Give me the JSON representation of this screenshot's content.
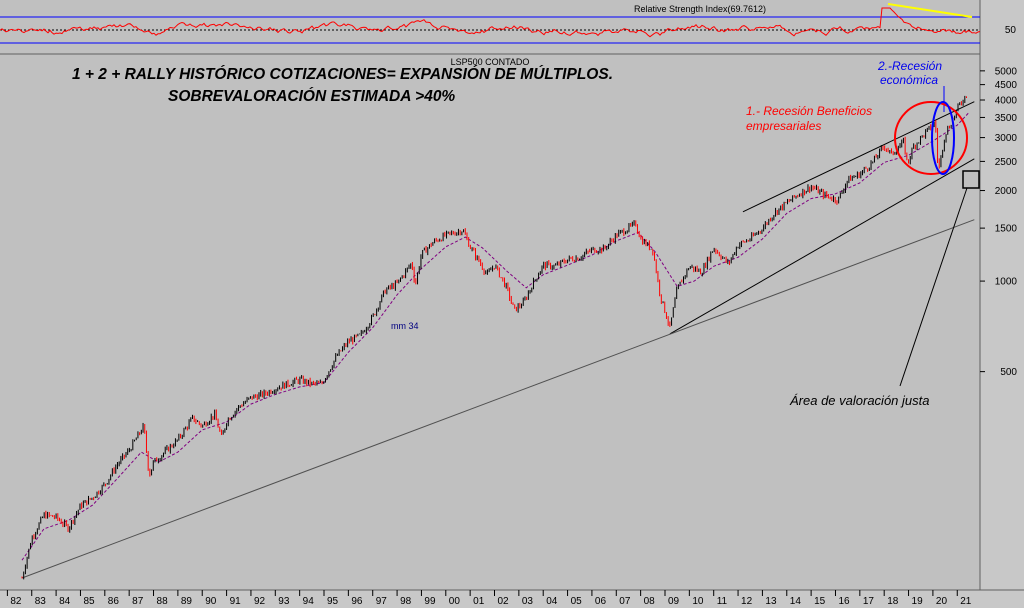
{
  "chart_data": {
    "type": "line",
    "instrument": "LSP500 CONTADO",
    "scale": "log",
    "title_lines": [
      "1 + 2 + RALLY HISTÓRICO COTIZACIONES= EXPANSIÓN DE MÚLTIPLOS.",
      "SOBREVALORACIÓN ESTIMADA >40%"
    ],
    "x_tick_labels": [
      "82",
      "83",
      "84",
      "85",
      "86",
      "87",
      "88",
      "89",
      "90",
      "91",
      "92",
      "93",
      "94",
      "95",
      "96",
      "97",
      "98",
      "99",
      "00",
      "01",
      "02",
      "03",
      "04",
      "05",
      "06",
      "07",
      "08",
      "09",
      "10",
      "11",
      "12",
      "13",
      "14",
      "15",
      "16",
      "17",
      "18",
      "19",
      "20",
      "21"
    ],
    "y_tick_labels": [
      "5000",
      "4500",
      "4000",
      "3500",
      "3000",
      "2500",
      "2000",
      "1500",
      "1000",
      "500"
    ],
    "y_ticks": [
      5000,
      4500,
      4000,
      3500,
      3000,
      2500,
      2000,
      1500,
      1000,
      500
    ],
    "ylim": [
      100,
      5600
    ],
    "xlim": [
      1981.85,
      2021.75
    ],
    "series": [
      {
        "name": "",
        "color": "#000000",
        "points": [
          [
            1982.0,
            120
          ],
          [
            1982.6,
            103
          ],
          [
            1983.0,
            140
          ],
          [
            1983.5,
            167
          ],
          [
            1984.0,
            164
          ],
          [
            1984.5,
            151
          ],
          [
            1985.0,
            179
          ],
          [
            1985.5,
            191
          ],
          [
            1986.0,
            211
          ],
          [
            1986.5,
            245
          ],
          [
            1987.0,
            274
          ],
          [
            1987.6,
            330
          ],
          [
            1987.82,
            225
          ],
          [
            1988.0,
            250
          ],
          [
            1988.5,
            272
          ],
          [
            1989.0,
            297
          ],
          [
            1989.6,
            350
          ],
          [
            1990.0,
            330
          ],
          [
            1990.5,
            361
          ],
          [
            1990.8,
            300
          ],
          [
            1991.0,
            343
          ],
          [
            1991.5,
            382
          ],
          [
            1992.0,
            410
          ],
          [
            1992.5,
            420
          ],
          [
            1993.0,
            440
          ],
          [
            1993.5,
            455
          ],
          [
            1994.0,
            470
          ],
          [
            1994.5,
            455
          ],
          [
            1994.9,
            455
          ],
          [
            1995.5,
            560
          ],
          [
            1996.0,
            630
          ],
          [
            1996.5,
            660
          ],
          [
            1997.0,
            760
          ],
          [
            1997.5,
            930
          ],
          [
            1998.0,
            980
          ],
          [
            1998.6,
            1150
          ],
          [
            1998.75,
            970
          ],
          [
            1999.0,
            1230
          ],
          [
            1999.5,
            1350
          ],
          [
            2000.0,
            1420
          ],
          [
            2000.7,
            1480
          ],
          [
            2001.0,
            1300
          ],
          [
            2001.7,
            1050
          ],
          [
            2002.0,
            1130
          ],
          [
            2002.5,
            950
          ],
          [
            2002.8,
            800
          ],
          [
            2003.2,
            850
          ],
          [
            2003.6,
            990
          ],
          [
            2004.0,
            1130
          ],
          [
            2004.5,
            1120
          ],
          [
            2005.0,
            1180
          ],
          [
            2005.5,
            1200
          ],
          [
            2006.0,
            1270
          ],
          [
            2006.5,
            1280
          ],
          [
            2007.0,
            1420
          ],
          [
            2007.8,
            1550
          ],
          [
            2008.0,
            1380
          ],
          [
            2008.5,
            1270
          ],
          [
            2008.8,
            900
          ],
          [
            2009.2,
            700
          ],
          [
            2009.5,
            940
          ],
          [
            2010.0,
            1120
          ],
          [
            2010.5,
            1070
          ],
          [
            2011.0,
            1290
          ],
          [
            2011.6,
            1140
          ],
          [
            2012.0,
            1320
          ],
          [
            2012.5,
            1380
          ],
          [
            2013.0,
            1500
          ],
          [
            2013.5,
            1690
          ],
          [
            2014.0,
            1820
          ],
          [
            2014.5,
            1950
          ],
          [
            2015.0,
            2060
          ],
          [
            2015.6,
            1920
          ],
          [
            2016.1,
            1860
          ],
          [
            2016.5,
            2170
          ],
          [
            2017.0,
            2270
          ],
          [
            2017.5,
            2470
          ],
          [
            2018.0,
            2820
          ],
          [
            2018.3,
            2640
          ],
          [
            2018.8,
            2900
          ],
          [
            2018.95,
            2450
          ],
          [
            2019.2,
            2800
          ],
          [
            2019.5,
            2990
          ],
          [
            2020.1,
            3380
          ],
          [
            2020.22,
            2300
          ],
          [
            2020.5,
            3100
          ],
          [
            2020.8,
            3400
          ],
          [
            2021.0,
            3750
          ],
          [
            2021.4,
            4200
          ]
        ]
      },
      {
        "name": "mm 34",
        "color": "#800080",
        "points": [
          [
            1982.6,
            118
          ],
          [
            1983.5,
            150
          ],
          [
            1984.5,
            160
          ],
          [
            1985.5,
            180
          ],
          [
            1986.5,
            220
          ],
          [
            1987.5,
            270
          ],
          [
            1988.2,
            250
          ],
          [
            1989.0,
            270
          ],
          [
            1990.0,
            320
          ],
          [
            1991.0,
            340
          ],
          [
            1992.0,
            390
          ],
          [
            1993.0,
            420
          ],
          [
            1994.0,
            445
          ],
          [
            1995.0,
            460
          ],
          [
            1996.0,
            580
          ],
          [
            1997.0,
            700
          ],
          [
            1998.0,
            900
          ],
          [
            1999.0,
            1100
          ],
          [
            2000.0,
            1300
          ],
          [
            2000.8,
            1400
          ],
          [
            2001.5,
            1290
          ],
          [
            2002.5,
            1080
          ],
          [
            2003.3,
            950
          ],
          [
            2004.0,
            1050
          ],
          [
            2005.0,
            1130
          ],
          [
            2006.0,
            1220
          ],
          [
            2007.0,
            1360
          ],
          [
            2007.9,
            1450
          ],
          [
            2008.6,
            1250
          ],
          [
            2009.5,
            960
          ],
          [
            2010.2,
            1000
          ],
          [
            2011.0,
            1120
          ],
          [
            2012.0,
            1200
          ],
          [
            2013.0,
            1380
          ],
          [
            2014.0,
            1680
          ],
          [
            2015.0,
            1880
          ],
          [
            2016.0,
            1950
          ],
          [
            2017.0,
            2120
          ],
          [
            2018.0,
            2480
          ],
          [
            2019.0,
            2620
          ],
          [
            2020.0,
            2920
          ],
          [
            2021.0,
            3300
          ],
          [
            2021.5,
            3650
          ]
        ]
      }
    ],
    "trend_lines": [
      {
        "color": "#000000",
        "from": [
          2009.2,
          667
        ],
        "to": [
          2021.7,
          2550
        ]
      },
      {
        "color": "#000000",
        "from": [
          2012.2,
          1700
        ],
        "to": [
          2021.7,
          3950
        ]
      },
      {
        "color": "#505050",
        "from": [
          1982.6,
          103
        ],
        "to": [
          2021.7,
          1600
        ]
      }
    ],
    "annotations": {
      "recesion_beneficios": [
        "1.- Recesión Beneficios",
        "empresariales"
      ],
      "recesion_economica": [
        "2.-Recesión",
        "económica"
      ],
      "valoracion_justa": "Área de valoración justa",
      "mm_label": "mm 34"
    },
    "rsi": {
      "label": "Relative Strength Index(69.7612)",
      "value": 69.7612,
      "levels": [
        70,
        50,
        30
      ],
      "y_tick_labels": [
        "50"
      ],
      "color": "#ff0000"
    },
    "colors": {
      "background": "#c0c0c0",
      "down_bars": "#ff0000",
      "up_bars": "#000000",
      "moving_average": "#800080",
      "rsi_line": "#ff0000",
      "rsi_bands": "#0000ff",
      "rsi_divergence": "#ffff00",
      "circle_red": "#ff0000",
      "ellipse_blue": "#0000ff"
    }
  }
}
